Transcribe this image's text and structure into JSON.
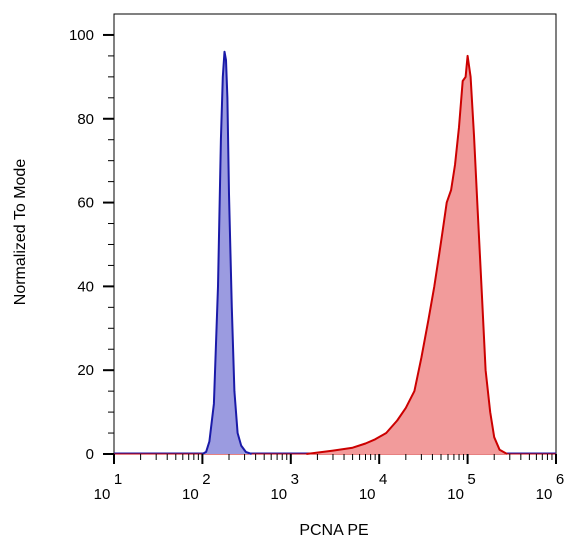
{
  "chart_data": {
    "type": "area",
    "title": "",
    "xlabel": "PCNA PE",
    "ylabel": "Normalized To Mode",
    "xscale": "log",
    "xlim": [
      10,
      1000000
    ],
    "ylim": [
      0,
      105
    ],
    "yticks": [
      0,
      20,
      40,
      60,
      80,
      100
    ],
    "xticks": [
      {
        "base": "10",
        "exp": "1",
        "value": 10
      },
      {
        "base": "10",
        "exp": "2",
        "value": 100
      },
      {
        "base": "10",
        "exp": "3",
        "value": 1000
      },
      {
        "base": "10",
        "exp": "4",
        "value": 10000
      },
      {
        "base": "10",
        "exp": "5",
        "value": 100000
      },
      {
        "base": "10",
        "exp": "6",
        "value": 1000000
      }
    ],
    "grid": false,
    "series": [
      {
        "fill": "#9b9be0",
        "stroke": "#1a1aa8",
        "points": [
          [
            100,
            0
          ],
          [
            110,
            0.5
          ],
          [
            120,
            3
          ],
          [
            135,
            12
          ],
          [
            150,
            40
          ],
          [
            162,
            75
          ],
          [
            170,
            90
          ],
          [
            178,
            96
          ],
          [
            185,
            94
          ],
          [
            192,
            85
          ],
          [
            200,
            62
          ],
          [
            215,
            35
          ],
          [
            230,
            15
          ],
          [
            250,
            5
          ],
          [
            275,
            2
          ],
          [
            310,
            0.5
          ],
          [
            360,
            0
          ]
        ]
      },
      {
        "fill": "#f29b9b",
        "stroke": "#cc0000",
        "points": [
          [
            1500,
            0
          ],
          [
            3000,
            0.8
          ],
          [
            5000,
            1.5
          ],
          [
            7000,
            2.5
          ],
          [
            9000,
            3.5
          ],
          [
            12000,
            5
          ],
          [
            16000,
            8
          ],
          [
            20000,
            11
          ],
          [
            25000,
            15
          ],
          [
            30000,
            23
          ],
          [
            36000,
            32
          ],
          [
            42000,
            40
          ],
          [
            48000,
            48
          ],
          [
            52000,
            53
          ],
          [
            58000,
            60
          ],
          [
            65000,
            63
          ],
          [
            72000,
            69
          ],
          [
            80000,
            78
          ],
          [
            88000,
            89
          ],
          [
            95000,
            90
          ],
          [
            100000,
            95
          ],
          [
            108000,
            90
          ],
          [
            118000,
            76
          ],
          [
            130000,
            58
          ],
          [
            145000,
            38
          ],
          [
            160000,
            20
          ],
          [
            180000,
            10
          ],
          [
            200000,
            4
          ],
          [
            230000,
            1
          ],
          [
            280000,
            0
          ]
        ]
      }
    ]
  }
}
